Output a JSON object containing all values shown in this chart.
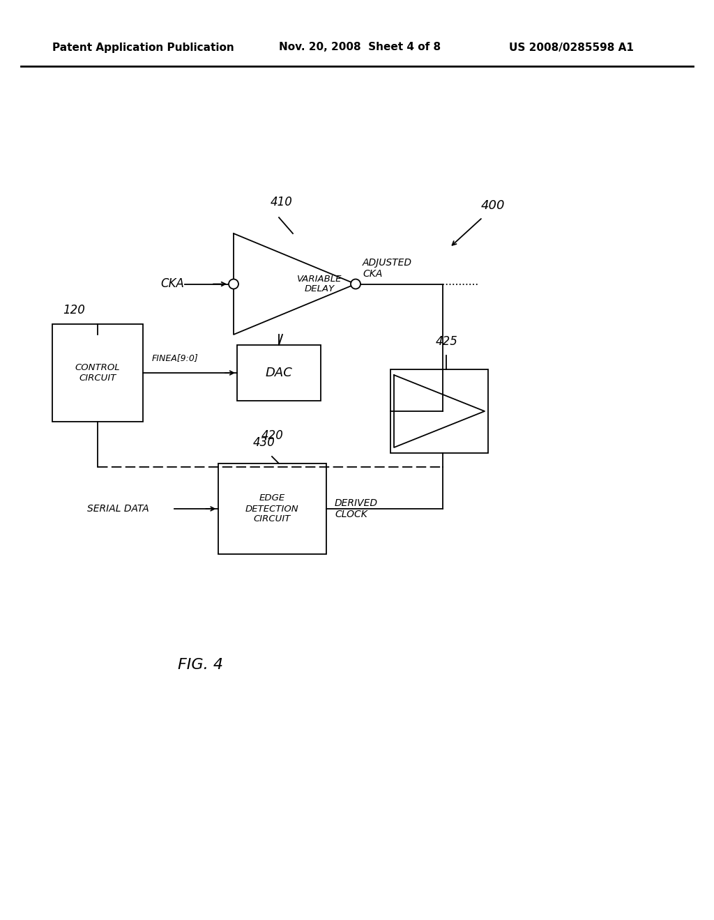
{
  "bg_color": "#ffffff",
  "header_left": "Patent Application Publication",
  "header_mid": "Nov. 20, 2008  Sheet 4 of 8",
  "header_right": "US 2008/0285598 A1",
  "fig_label": "FIG. 4",
  "ref_400": "400",
  "ref_410": "410",
  "ref_420": "420",
  "ref_425": "425",
  "ref_430": "430",
  "ref_120": "120",
  "label_cka": "CKA",
  "label_adjusted_cka": "ADJUSTED\nCKA",
  "label_variable_delay": "VARIABLE\nDELAY",
  "label_dac": "DAC",
  "label_control_circuit": "CONTROL\nCIRCUIT",
  "label_edge_detection": "EDGE\nDETECTION\nCIRCUIT",
  "label_serial_data": "SERIAL DATA",
  "label_derived_clock": "DERIVED\nCLOCK",
  "label_finea": "FINEA[9:0]",
  "lw": 1.3
}
